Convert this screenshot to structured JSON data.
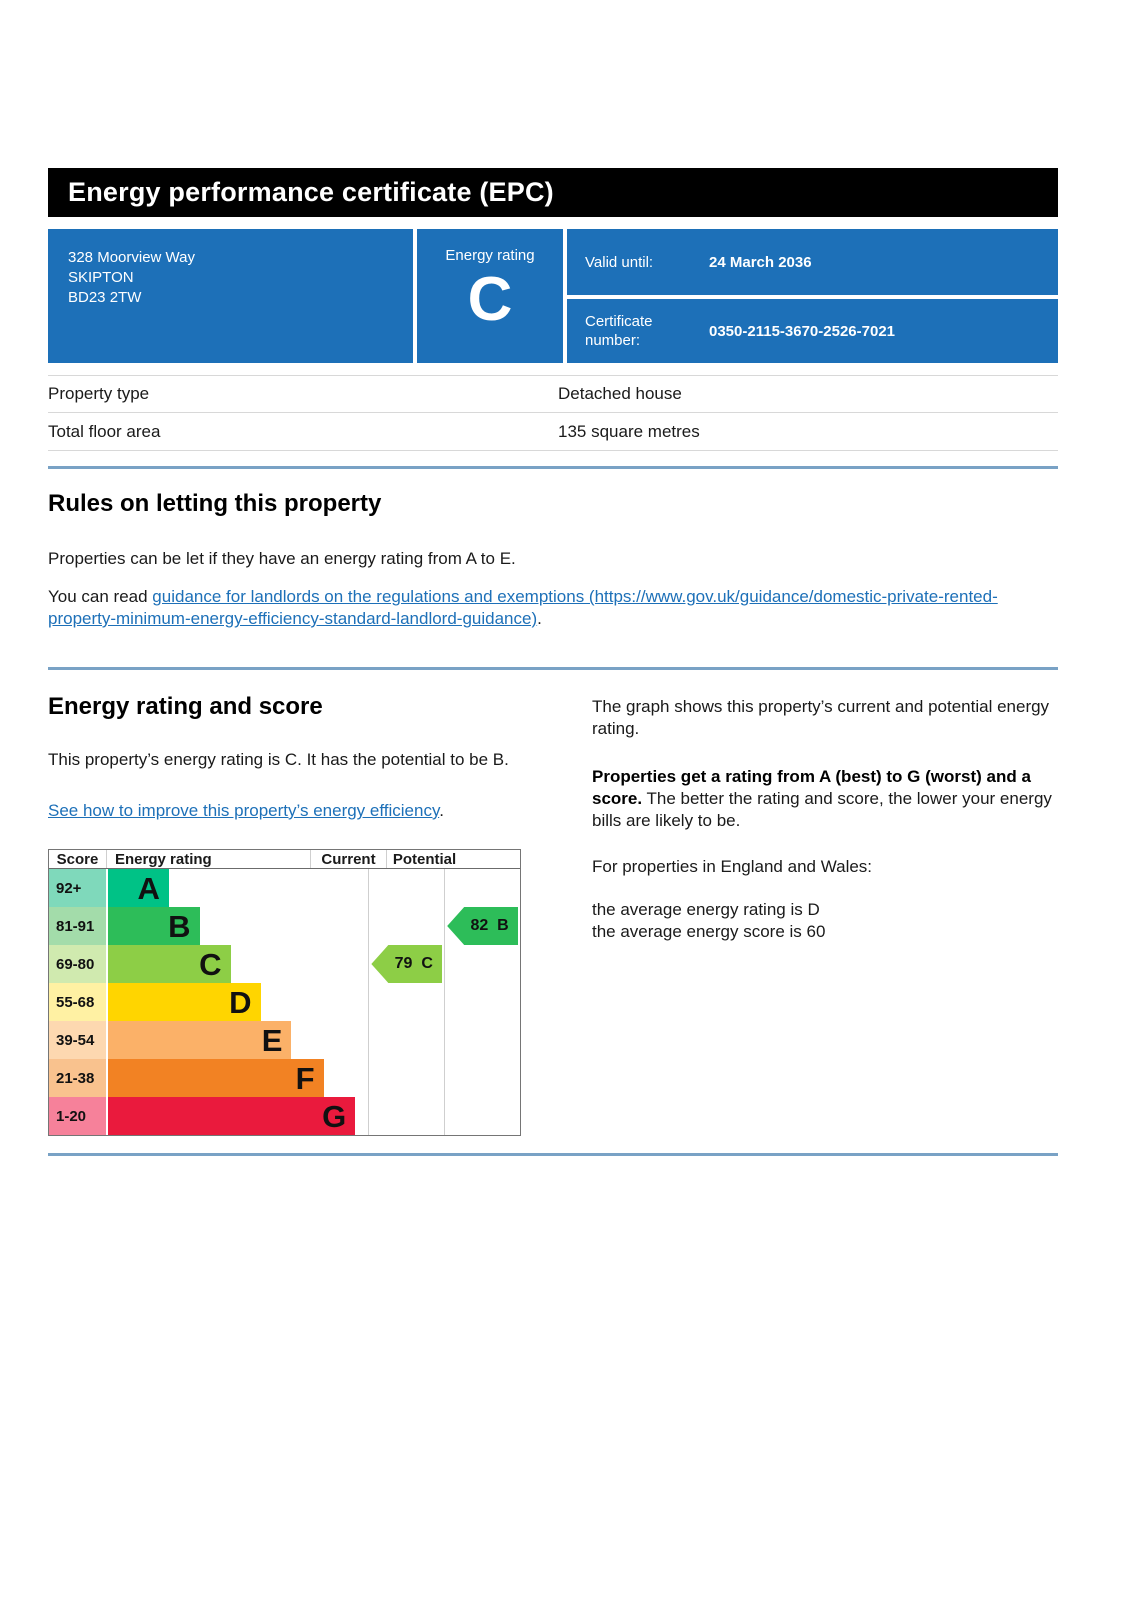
{
  "header": {
    "title": "Energy performance certificate (EPC)"
  },
  "summary_box": {
    "address_lines": [
      "328 Moorview Way",
      "SKIPTON",
      "BD23 2TW"
    ],
    "energy_rating_label": "Energy rating",
    "energy_rating_value": "C",
    "valid_until_label": "Valid until:",
    "valid_until_value": "24 March 2036",
    "certificate_number_label": "Certificate number:",
    "certificate_number_value": "0350-2115-3670-2526-7021"
  },
  "property_facts": {
    "rows": [
      {
        "label": "Property type",
        "value": "Detached house"
      },
      {
        "label": "Total floor area",
        "value": "135 square metres"
      }
    ]
  },
  "rules_section": {
    "heading": "Rules on letting this property",
    "para1": "Properties can be let if they have an energy rating from A to E.",
    "para2_prefix": "You can read ",
    "para2_link": "guidance for landlords on the regulations and exemptions (https://www.gov.uk/guidance/domestic-private-rented-property-minimum-energy-efficiency-standard-landlord-guidance)",
    "para2_suffix": "."
  },
  "rating_section": {
    "heading": "Energy rating and score",
    "para1": "This property’s energy rating is C. It has the potential to be B.",
    "improve_link": "See how to improve this property’s energy efficiency",
    "improve_suffix": ".",
    "right_para1": "The graph shows this property’s current and potential energy rating.",
    "right_para2_bold": "Properties get a rating from A (best) to G (worst) and a score.",
    "right_para2_rest": " The better the rating and score, the lower your energy bills are likely to be.",
    "right_para3": "For properties in England and Wales:",
    "right_para4_line1": "the average energy rating is D",
    "right_para4_line2": "the average energy score is 60"
  },
  "chart_data": {
    "type": "bar",
    "title": "Energy rating and score (EPC bands)",
    "columns": [
      "Score",
      "Energy rating",
      "Current",
      "Potential"
    ],
    "bands": [
      {
        "range": "92+",
        "letter": "A",
        "color": "#00c286",
        "tint": "#7fd9bb",
        "bar_pct": 23.4
      },
      {
        "range": "81-91",
        "letter": "B",
        "color": "#2dbd59",
        "tint": "#a3dcaa",
        "bar_pct": 35.2
      },
      {
        "range": "69-80",
        "letter": "C",
        "color": "#8dce46",
        "tint": "#d0eaaf",
        "bar_pct": 47.1
      },
      {
        "range": "55-68",
        "letter": "D",
        "color": "#ffd500",
        "tint": "#fff1a3",
        "bar_pct": 58.6
      },
      {
        "range": "39-54",
        "letter": "E",
        "color": "#fbb168",
        "tint": "#fdd8b0",
        "bar_pct": 70.5
      },
      {
        "range": "21-38",
        "letter": "F",
        "color": "#f28223",
        "tint": "#f9c28e",
        "bar_pct": 82.8
      },
      {
        "range": "1-20",
        "letter": "G",
        "color": "#ea1a3d",
        "tint": "#f6819a",
        "bar_pct": 95.0
      }
    ],
    "current": {
      "score": 79,
      "letter": "C",
      "color": "#8dce46"
    },
    "potential": {
      "score": 82,
      "letter": "B",
      "color": "#2dbd59"
    }
  },
  "colors": {
    "banner_background": "#000000",
    "summary_blue": "#1d70b8",
    "link_blue": "#1d70b8",
    "section_rule_blue": "#79a2c5"
  }
}
